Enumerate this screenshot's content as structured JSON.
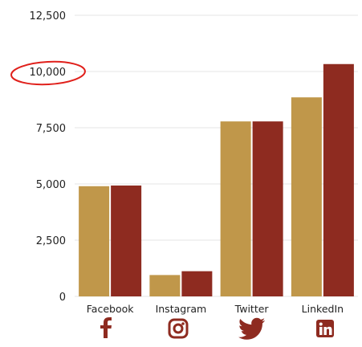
{
  "chart_data": {
    "type": "bar",
    "categories": [
      "Facebook",
      "Instagram",
      "Twitter",
      "LinkedIn"
    ],
    "series": [
      {
        "values": [
          4900,
          950,
          7780,
          8850
        ]
      },
      {
        "values": [
          4930,
          1120,
          7780,
          10330
        ]
      }
    ],
    "ylim": [
      0,
      12500
    ],
    "yticks": [
      {
        "value": 0,
        "label": "0"
      },
      {
        "value": 2500,
        "label": "2,500"
      },
      {
        "value": 5000,
        "label": "5,000"
      },
      {
        "value": 7500,
        "label": "7,500"
      },
      {
        "value": 10000,
        "label": "10,000"
      },
      {
        "value": 12500,
        "label": "12,500"
      }
    ],
    "grid": true,
    "legend": "none",
    "highlighted_tick": "10,000",
    "colors": {
      "series": [
        "#C0974A",
        "#8E2B20"
      ],
      "grid": "#E4E4E4",
      "highlight_ellipse": "#E0201B",
      "icons": "#8E2B20"
    },
    "category_icons": [
      "facebook-icon",
      "instagram-icon",
      "twitter-icon",
      "linkedin-icon"
    ]
  }
}
